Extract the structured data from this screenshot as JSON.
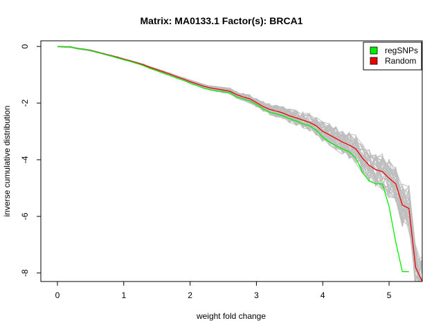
{
  "chart_data": {
    "type": "line",
    "title": "Matrix: MA0133.1 Factor(s): BRCA1",
    "xlabel": "weight fold change",
    "ylabel": "inverse cumulative distribution",
    "xlim": [
      -0.25,
      5.5
    ],
    "ylim": [
      -8.3,
      0.2
    ],
    "x_ticks": [
      "0",
      "1",
      "2",
      "3",
      "4",
      "5"
    ],
    "y_ticks": [
      "0",
      "-2",
      "-4",
      "-6",
      "-8"
    ],
    "x_tick_values": [
      0,
      1,
      2,
      3,
      4,
      5
    ],
    "y_tick_values": [
      0,
      -2,
      -4,
      -6,
      -8
    ],
    "legend": {
      "position": "top-right",
      "entries": [
        {
          "label": "regSNPs",
          "color": "#00ee00"
        },
        {
          "label": "Random",
          "color": "#ee0000"
        }
      ]
    },
    "series": [
      {
        "name": "regSNPs",
        "color": "#00ee00",
        "x": [
          0,
          0.2,
          0.3,
          0.4,
          0.5,
          0.6,
          0.7,
          0.8,
          0.9,
          1.0,
          1.1,
          1.2,
          1.3,
          1.4,
          1.5,
          1.6,
          1.7,
          1.8,
          1.9,
          2.0,
          2.1,
          2.2,
          2.3,
          2.4,
          2.5,
          2.6,
          2.7,
          2.8,
          2.9,
          3.0,
          3.1,
          3.2,
          3.3,
          3.4,
          3.5,
          3.6,
          3.7,
          3.8,
          3.9,
          4.0,
          4.1,
          4.2,
          4.3,
          4.4,
          4.5,
          4.6,
          4.7,
          4.8,
          4.9,
          5.0,
          5.1,
          5.2,
          5.3
        ],
        "y": [
          0,
          -0.02,
          -0.07,
          -0.1,
          -0.15,
          -0.21,
          -0.27,
          -0.33,
          -0.4,
          -0.47,
          -0.53,
          -0.6,
          -0.68,
          -0.78,
          -0.86,
          -0.95,
          -1.03,
          -1.12,
          -1.2,
          -1.3,
          -1.38,
          -1.47,
          -1.53,
          -1.57,
          -1.6,
          -1.63,
          -1.78,
          -1.85,
          -1.92,
          -2.05,
          -2.2,
          -2.32,
          -2.38,
          -2.45,
          -2.55,
          -2.63,
          -2.73,
          -2.8,
          -2.95,
          -3.2,
          -3.37,
          -3.5,
          -3.62,
          -3.72,
          -3.95,
          -4.45,
          -4.75,
          -4.85,
          -4.85,
          -5.65,
          -6.9,
          -7.95,
          -7.95
        ]
      },
      {
        "name": "Random",
        "color": "#ee0000",
        "x": [
          0,
          0.2,
          0.3,
          0.4,
          0.5,
          0.6,
          0.7,
          0.8,
          0.9,
          1.0,
          1.1,
          1.2,
          1.3,
          1.4,
          1.5,
          1.6,
          1.7,
          1.8,
          1.9,
          2.0,
          2.1,
          2.2,
          2.3,
          2.4,
          2.5,
          2.6,
          2.7,
          2.8,
          2.9,
          3.0,
          3.1,
          3.2,
          3.3,
          3.4,
          3.5,
          3.6,
          3.7,
          3.8,
          3.9,
          4.0,
          4.1,
          4.2,
          4.3,
          4.4,
          4.5,
          4.6,
          4.7,
          4.8,
          4.9,
          5.0,
          5.1,
          5.2,
          5.3,
          5.4,
          5.5
        ],
        "y": [
          0,
          -0.02,
          -0.07,
          -0.1,
          -0.14,
          -0.2,
          -0.26,
          -0.32,
          -0.38,
          -0.45,
          -0.51,
          -0.58,
          -0.65,
          -0.74,
          -0.82,
          -0.9,
          -0.98,
          -1.07,
          -1.15,
          -1.24,
          -1.32,
          -1.4,
          -1.46,
          -1.5,
          -1.54,
          -1.58,
          -1.7,
          -1.78,
          -1.85,
          -1.98,
          -2.12,
          -2.22,
          -2.28,
          -2.35,
          -2.45,
          -2.52,
          -2.6,
          -2.68,
          -2.8,
          -3.0,
          -3.12,
          -3.25,
          -3.38,
          -3.48,
          -3.62,
          -3.95,
          -4.2,
          -4.35,
          -4.42,
          -4.65,
          -4.85,
          -5.6,
          -5.72,
          -7.8,
          -8.3
        ]
      }
    ]
  }
}
